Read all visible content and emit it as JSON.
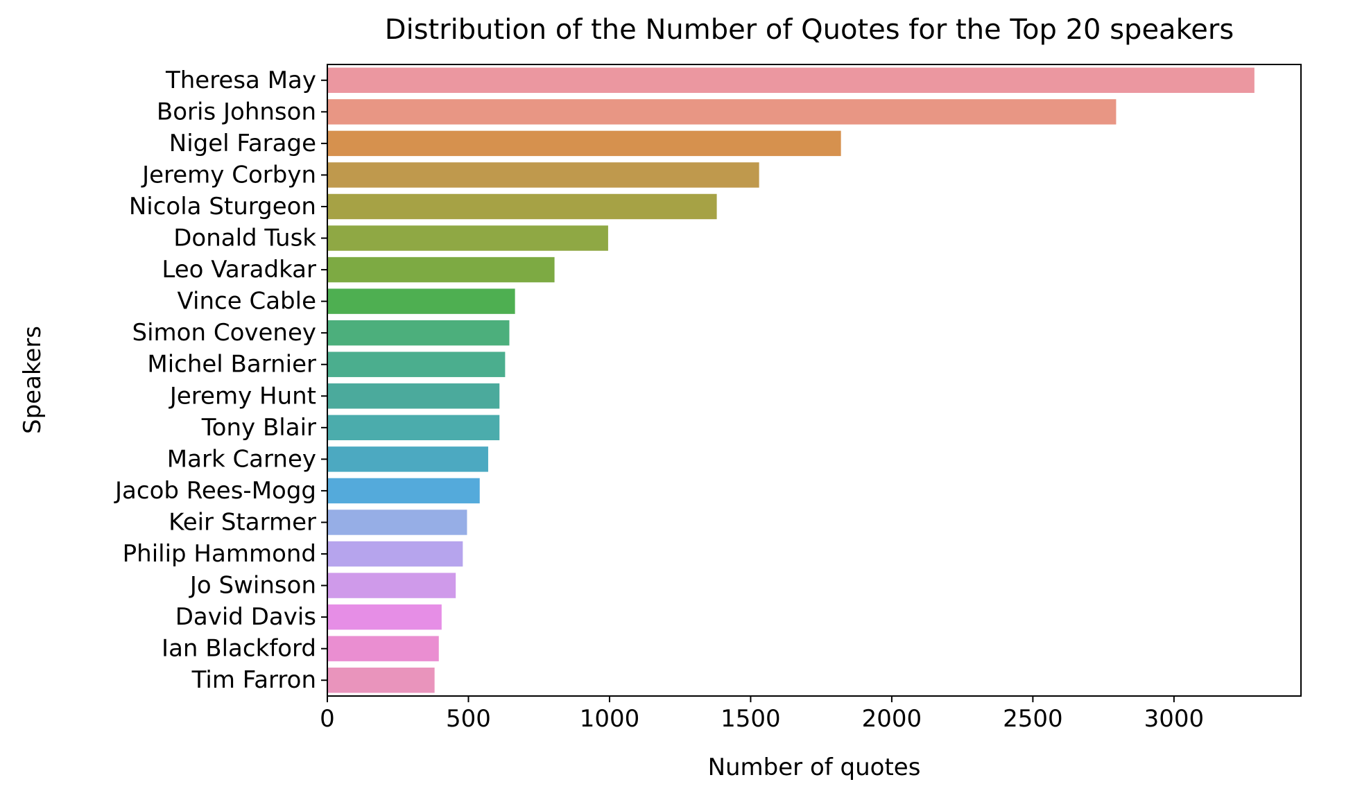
{
  "chart_data": {
    "type": "bar",
    "orientation": "horizontal",
    "title": "Distribution of the Number of Quotes for the Top 20 speakers",
    "xlabel": "Number of quotes",
    "ylabel": "Speakers",
    "xlim": [
      0,
      3450
    ],
    "xticks": [
      0,
      500,
      1000,
      1500,
      2000,
      2500,
      3000
    ],
    "grid": false,
    "categories": [
      "Theresa May",
      "Boris Johnson",
      "Nigel Farage",
      "Jeremy Corbyn",
      "Nicola Sturgeon",
      "Donald Tusk",
      "Leo Varadkar",
      "Vince Cable",
      "Simon Coveney",
      "Michel Barnier",
      "Jeremy Hunt",
      "Tony Blair",
      "Mark Carney",
      "Jacob Rees-Mogg",
      "Keir Starmer",
      "Philip Hammond",
      "Jo Swinson",
      "David Davis",
      "Ian Blackford",
      "Tim Farron"
    ],
    "values": [
      3285,
      2795,
      1820,
      1530,
      1380,
      995,
      805,
      665,
      645,
      630,
      610,
      610,
      570,
      540,
      495,
      480,
      455,
      405,
      395,
      380
    ],
    "colors": [
      "#eb97a0",
      "#e89684",
      "#d6914e",
      "#bf994d",
      "#a6a245",
      "#8fa844",
      "#7daa43",
      "#4eaf51",
      "#4caf7c",
      "#4bae8e",
      "#4baa9c",
      "#4bacac",
      "#4ca9c1",
      "#54aadb",
      "#96aee6",
      "#b6a4ed",
      "#cf9aea",
      "#e68ee6",
      "#ea8ed1",
      "#e994bc"
    ]
  }
}
